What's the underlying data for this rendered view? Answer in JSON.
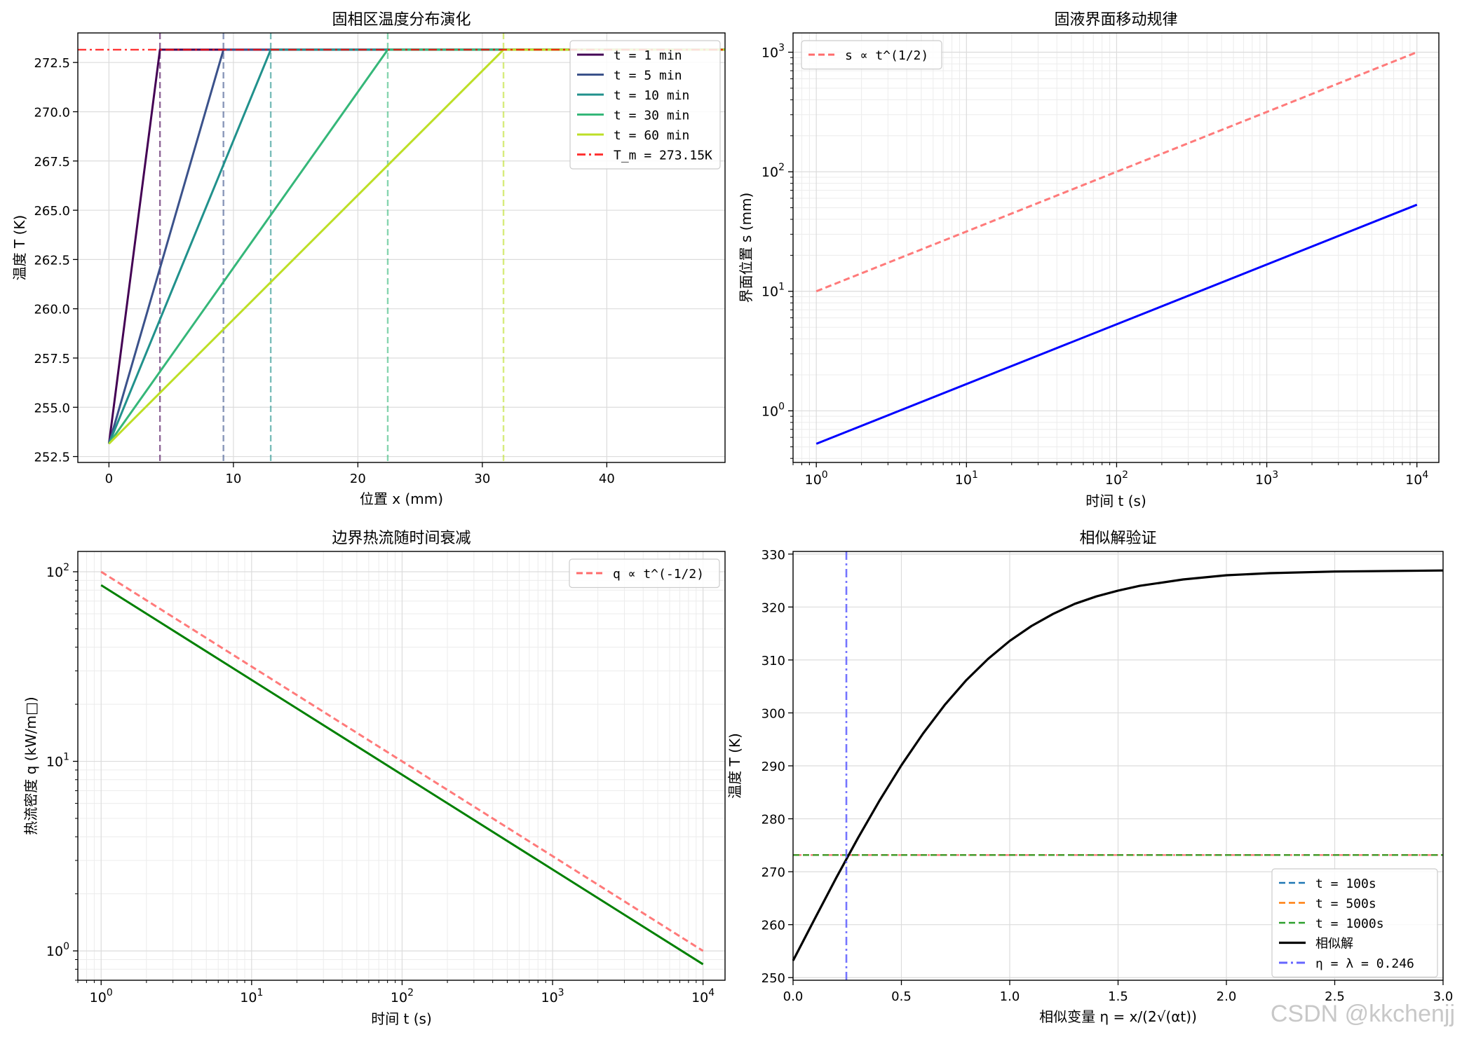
{
  "watermark": "CSDN @kkchenjj",
  "chart_data": [
    {
      "type": "line",
      "title": "固相区温度分布演化",
      "xlabel": "位置 x (mm)",
      "ylabel": "温度 T (K)",
      "xlim": [
        -2.5,
        49.5
      ],
      "ylim": [
        252.2,
        274.0
      ],
      "xticks": [
        0,
        10,
        20,
        30,
        40
      ],
      "xtick_labels": [
        "0",
        "10",
        "20",
        "30",
        "40"
      ],
      "yticks": [
        252.5,
        255.0,
        257.5,
        260.0,
        262.5,
        265.0,
        267.5,
        270.0,
        272.5
      ],
      "ytick_labels": [
        "252.5",
        "255.0",
        "257.5",
        "260.0",
        "262.5",
        "265.0",
        "267.5",
        "270.0",
        "272.5"
      ],
      "grid": true,
      "legend_position": "top-right",
      "series": [
        {
          "name": "t = 1 min",
          "color": "#440154",
          "x": [
            0,
            4.1,
            49.5
          ],
          "y": [
            253.15,
            273.15,
            273.15
          ]
        },
        {
          "name": "t = 5 min",
          "color": "#3b528b",
          "x": [
            0,
            9.2,
            49.5
          ],
          "y": [
            253.15,
            273.15,
            273.15
          ]
        },
        {
          "name": "t = 10 min",
          "color": "#21918c",
          "x": [
            0,
            13.0,
            49.5
          ],
          "y": [
            253.15,
            273.15,
            273.15
          ]
        },
        {
          "name": "t = 30 min",
          "color": "#35b779",
          "x": [
            0,
            22.4,
            49.5
          ],
          "y": [
            253.15,
            273.15,
            273.15
          ]
        },
        {
          "name": "t = 60 min",
          "color": "#bddf26",
          "x": [
            0,
            31.7,
            49.5
          ],
          "y": [
            253.15,
            273.15,
            273.15
          ]
        }
      ],
      "vlines": [
        {
          "x": 4.1,
          "color": "#440154"
        },
        {
          "x": 9.2,
          "color": "#3b528b"
        },
        {
          "x": 13.0,
          "color": "#21918c"
        },
        {
          "x": 22.4,
          "color": "#35b779"
        },
        {
          "x": 31.7,
          "color": "#bddf26"
        }
      ],
      "hline": {
        "name": "T_m = 273.15K",
        "y": 273.15,
        "color": "#ff0000"
      }
    },
    {
      "type": "line",
      "title": "固液界面移动规律",
      "xlabel": "时间 t (s)",
      "ylabel": "界面位置 s (mm)",
      "xscale": "log",
      "yscale": "log",
      "xlim": [
        0.7,
        14000
      ],
      "ylim": [
        0.37,
        1450
      ],
      "xticks": [
        1,
        10,
        100,
        1000,
        10000
      ],
      "xtick_labels": [
        [
          "10",
          "0"
        ],
        [
          "10",
          "1"
        ],
        [
          "10",
          "2"
        ],
        [
          "10",
          "3"
        ],
        [
          "10",
          "4"
        ]
      ],
      "yticks": [
        1,
        10,
        100,
        1000
      ],
      "ytick_labels": [
        [
          "10",
          "0"
        ],
        [
          "10",
          "1"
        ],
        [
          "10",
          "2"
        ],
        [
          "10",
          "3"
        ]
      ],
      "grid": true,
      "legend_position": "top-left",
      "series": [
        {
          "name": "",
          "color": "#0000ff",
          "style": "solid",
          "x": [
            1,
            10000
          ],
          "y": [
            0.53,
            53
          ]
        },
        {
          "name": "s ∝ t^(1/2)",
          "color": "#ff6b6b",
          "style": "dashed",
          "x": [
            1,
            10000
          ],
          "y": [
            10,
            1000
          ]
        }
      ]
    },
    {
      "type": "line",
      "title": "边界热流随时间衰减",
      "xlabel": "时间 t (s)",
      "ylabel": "热流密度 q (kW/m□)",
      "xscale": "log",
      "yscale": "log",
      "xlim": [
        0.7,
        14000
      ],
      "ylim": [
        0.7,
        128
      ],
      "xticks": [
        1,
        10,
        100,
        1000,
        10000
      ],
      "xtick_labels": [
        [
          "10",
          "0"
        ],
        [
          "10",
          "1"
        ],
        [
          "10",
          "2"
        ],
        [
          "10",
          "3"
        ],
        [
          "10",
          "4"
        ]
      ],
      "yticks": [
        1,
        10,
        100
      ],
      "ytick_labels": [
        [
          "10",
          "0"
        ],
        [
          "10",
          "1"
        ],
        [
          "10",
          "2"
        ]
      ],
      "grid": true,
      "legend_position": "top-right",
      "series": [
        {
          "name": "",
          "color": "#008000",
          "style": "solid",
          "x": [
            1,
            10000
          ],
          "y": [
            85,
            0.85
          ]
        },
        {
          "name": "q ∝ t^(-1/2)",
          "color": "#ff6b6b",
          "style": "dashed",
          "x": [
            1,
            10000
          ],
          "y": [
            100,
            1.0
          ]
        }
      ]
    },
    {
      "type": "line",
      "title": "相似解验证",
      "xlabel": "相似变量 η = x/(2√(αt))",
      "ylabel": "温度 T (K)",
      "xlim": [
        0,
        3.0
      ],
      "ylim": [
        249.5,
        330.5
      ],
      "xticks": [
        0,
        0.5,
        1.0,
        1.5,
        2.0,
        2.5,
        3.0
      ],
      "xtick_labels": [
        "0.0",
        "0.5",
        "1.0",
        "1.5",
        "2.0",
        "2.5",
        "3.0"
      ],
      "yticks": [
        250,
        260,
        270,
        280,
        290,
        300,
        310,
        320,
        330
      ],
      "ytick_labels": [
        "250",
        "260",
        "270",
        "280",
        "290",
        "300",
        "310",
        "320",
        "330"
      ],
      "grid": true,
      "legend_position": "bottom-right",
      "series": [
        {
          "name": "t = 100s",
          "color": "#1f77b4",
          "style": "dashed",
          "x": [
            0,
            3.0
          ],
          "y": [
            273.15,
            273.15
          ]
        },
        {
          "name": "t = 500s",
          "color": "#ff7f0e",
          "style": "dashed",
          "x": [
            0,
            3.0
          ],
          "y": [
            273.15,
            273.15
          ]
        },
        {
          "name": "t = 1000s",
          "color": "#2ca02c",
          "style": "dashed",
          "x": [
            0,
            3.0
          ],
          "y": [
            273.15,
            273.15
          ]
        },
        {
          "name": "相似解",
          "color": "#000000",
          "style": "solid",
          "x": [
            0,
            0.1,
            0.2,
            0.3,
            0.4,
            0.5,
            0.6,
            0.7,
            0.8,
            0.9,
            1.0,
            1.1,
            1.2,
            1.3,
            1.4,
            1.5,
            1.6,
            1.8,
            2.0,
            2.2,
            2.5,
            3.0
          ],
          "y": [
            253.2,
            261.1,
            268.9,
            276.4,
            283.5,
            290.1,
            296.1,
            301.5,
            306.2,
            310.2,
            313.6,
            316.4,
            318.7,
            320.6,
            322.0,
            323.1,
            324.0,
            325.2,
            326.0,
            326.4,
            326.7,
            326.9
          ]
        }
      ],
      "vline": {
        "name": "η = λ = 0.246",
        "x": 0.246,
        "color": "#6666ff"
      },
      "hline": {
        "y": 273.15,
        "color": "#ff6b6b"
      }
    }
  ]
}
